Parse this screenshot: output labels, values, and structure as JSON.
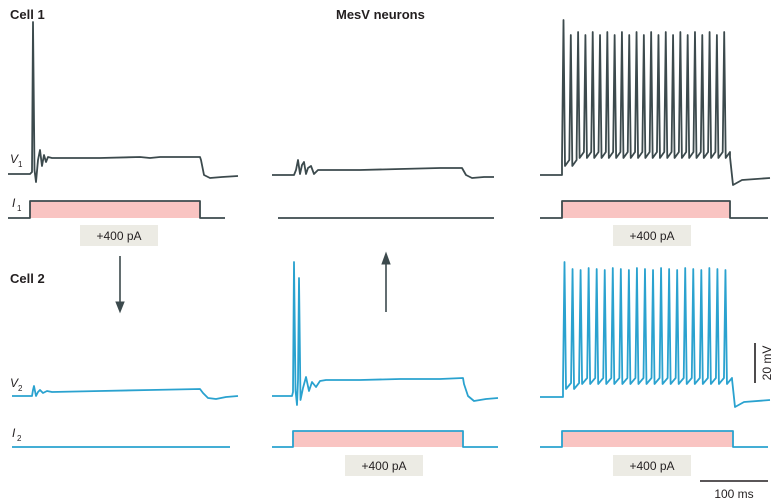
{
  "title": "MesV neurons",
  "cell1_label": "Cell 1",
  "cell2_label": "Cell 2",
  "v1_label": "V",
  "v1_sub": "1",
  "i1_label": "I",
  "i1_sub": "1",
  "v2_label": "V",
  "v2_sub": "2",
  "i2_label": "I",
  "i2_sub": "2",
  "stim_label": "+400 pA",
  "scale_voltage": "20 mV",
  "scale_time": "100 ms",
  "colors": {
    "cell1": "#3c4a4d",
    "cell2": "#2aa2cf",
    "stim_fill": "#f9c4c2",
    "pill": "#ecebe4",
    "arrow": "#3c4a4d"
  }
}
